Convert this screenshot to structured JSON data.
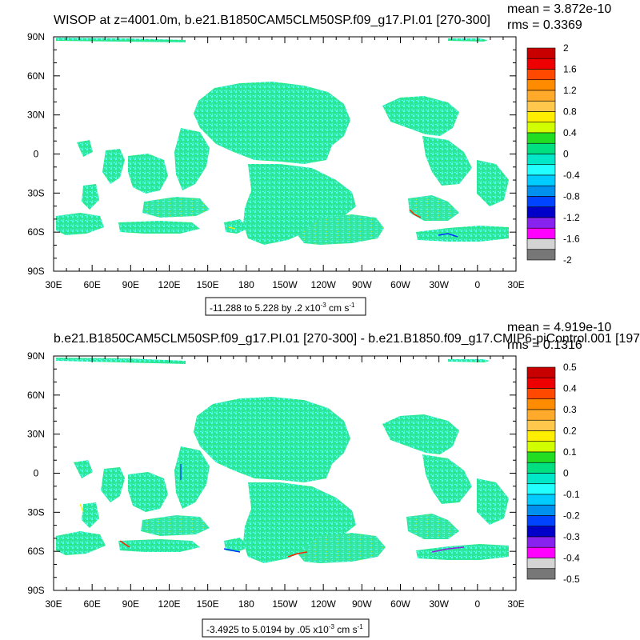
{
  "chart_data": [
    {
      "type": "heatmap",
      "title": "WISOP at z=4001.0m, b.e21.B1850CAM5CLM50SP.f09_g17.PI.01 [270-300]",
      "stats": [
        "mean = 3.872e-10",
        "rms = 0.3369"
      ],
      "xlabel": "",
      "ylabel": "",
      "x_ticks": [
        "30E",
        "60E",
        "90E",
        "120E",
        "150E",
        "180",
        "150W",
        "120W",
        "90W",
        "60W",
        "30W",
        "0",
        "30E"
      ],
      "y_ticks": [
        "90N",
        "60N",
        "30N",
        "0",
        "30S",
        "60S",
        "90S"
      ],
      "xlim": [
        "30E",
        "30E"
      ],
      "ylim": [
        "90S",
        "90N"
      ],
      "colorbar_labels": [
        "2",
        "1.6",
        "1.2",
        "0.8",
        "0.4",
        "0",
        "-0.4",
        "-0.8",
        "-1.2",
        "-1.6",
        "-2"
      ],
      "colorbar_colors": [
        "#c80000",
        "#ee0000",
        "#ff4800",
        "#ff8c00",
        "#ffaa2a",
        "#ffc84c",
        "#ffee00",
        "#d2ff00",
        "#22dd22",
        "#00e080",
        "#00e8c8",
        "#22ffff",
        "#00ccff",
        "#0090ee",
        "#0044ff",
        "#0000c8",
        "#8822ee",
        "#ff00ff",
        "#d4d4d4",
        "#777777"
      ],
      "range_label": "-11.288 to 5.228 by .2 x10",
      "range_exp": "-3",
      "range_units": "cm s",
      "range_units_exp": "-1"
    },
    {
      "type": "heatmap",
      "title": "b.e21.B1850CAM5CLM50SP.f09_g17.PI.01 [270-300] - b.e21.B1850.f09_g17.CMIP6-piControl.001 [197",
      "stats": [
        "mean = 4.919e-10",
        "rms = 0.1316"
      ],
      "xlabel": "",
      "ylabel": "",
      "x_ticks": [
        "30E",
        "60E",
        "90E",
        "120E",
        "150E",
        "180",
        "150W",
        "120W",
        "90W",
        "60W",
        "30W",
        "0",
        "30E"
      ],
      "y_ticks": [
        "90N",
        "60N",
        "30N",
        "0",
        "30S",
        "60S",
        "90S"
      ],
      "xlim": [
        "30E",
        "30E"
      ],
      "ylim": [
        "90S",
        "90N"
      ],
      "colorbar_labels": [
        "0.5",
        "0.4",
        "0.3",
        "0.2",
        "0.1",
        "0",
        "-0.1",
        "-0.2",
        "-0.3",
        "-0.4",
        "-0.5"
      ],
      "colorbar_colors": [
        "#c80000",
        "#ee0000",
        "#ff4800",
        "#ff8c00",
        "#ffaa2a",
        "#ffc84c",
        "#ffee00",
        "#d2ff00",
        "#22dd22",
        "#00e080",
        "#00e8c8",
        "#22ffff",
        "#00ccff",
        "#0090ee",
        "#0044ff",
        "#0000c8",
        "#8822ee",
        "#ff00ff",
        "#d4d4d4",
        "#777777"
      ],
      "range_label": "-3.4925 to 5.0194 by .05 x10",
      "range_exp": "-3",
      "range_units": "cm s",
      "range_units_exp": "-1"
    }
  ],
  "field_colors": {
    "dominant": "#2ee6a0",
    "secondary": [
      "#22ee66",
      "#4ffff0",
      "#90ee40"
    ],
    "edge": [
      "#ff2200",
      "#0030ff",
      "#ffee00",
      "#9020e0"
    ]
  }
}
